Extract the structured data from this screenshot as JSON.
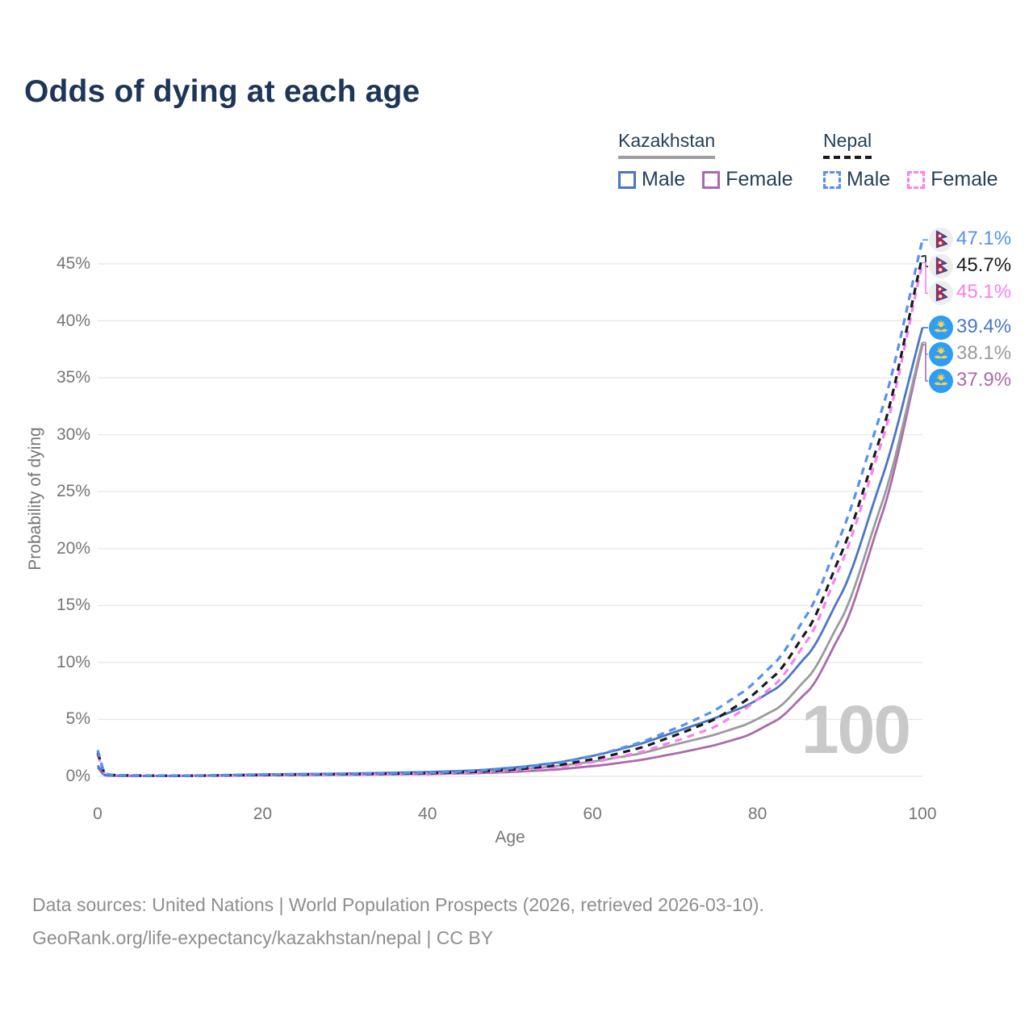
{
  "title": "Odds of dying at each age",
  "watermark": "100",
  "colors": {
    "title": "#1d3557",
    "axis_text": "#767676",
    "grid": "#e8e8e8",
    "watermark": "#c9c9c9",
    "footer": "#8e8e8e",
    "kazakhstan_male": "#4a77c4",
    "kazakhstan_female": "#aa6bac",
    "kazakhstan_both": "#9b9b9b",
    "nepal_male": "#5590f2",
    "nepal_female": "#fb80f1",
    "nepal_both": "#1a1a1a"
  },
  "legend": {
    "groups": [
      {
        "country": "Kazakhstan",
        "line_style": "solid",
        "items": [
          {
            "label": "Male",
            "color": "#4a77c4"
          },
          {
            "label": "Female",
            "color": "#aa6bac"
          }
        ]
      },
      {
        "country": "Nepal",
        "line_style": "dashed",
        "items": [
          {
            "label": "Male",
            "color": "#5590f2"
          },
          {
            "label": "Female",
            "color": "#fb80f1"
          }
        ]
      }
    ]
  },
  "footer": {
    "line1": "Data sources: United Nations | World Population Prospects (2026, retrieved 2026-03-10).",
    "line2": "GeoRank.org/life-expectancy/kazakhstan/nepal | CC BY"
  },
  "chart_data": {
    "type": "line",
    "title": "Odds of dying at each age",
    "xlabel": "Age",
    "ylabel": "Probability of dying",
    "xlim": [
      0,
      100
    ],
    "ylim_pct": [
      0,
      48
    ],
    "grid": true,
    "legend_position": "top-right",
    "x_ticks": [
      {
        "v": 0,
        "label": "0"
      },
      {
        "v": 20,
        "label": "20"
      },
      {
        "v": 40,
        "label": "40"
      },
      {
        "v": 60,
        "label": "60"
      },
      {
        "v": 80,
        "label": "80"
      },
      {
        "v": 100,
        "label": "100"
      }
    ],
    "y_ticks": [
      {
        "v": 0,
        "label": "0%"
      },
      {
        "v": 5,
        "label": "5%"
      },
      {
        "v": 10,
        "label": "10%"
      },
      {
        "v": 15,
        "label": "15%"
      },
      {
        "v": 20,
        "label": "20%"
      },
      {
        "v": 25,
        "label": "25%"
      },
      {
        "v": 30,
        "label": "30%"
      },
      {
        "v": 35,
        "label": "35%"
      },
      {
        "v": 40,
        "label": "40%"
      },
      {
        "v": 45,
        "label": "45%"
      }
    ],
    "ages": [
      0,
      1,
      2,
      5,
      10,
      20,
      30,
      40,
      45,
      50,
      55,
      60,
      65,
      70,
      74,
      78,
      82,
      86,
      90,
      95,
      100
    ],
    "series": [
      {
        "name": "Nepal Male",
        "country": "Nepal",
        "sex": "male",
        "color": "#5590f2",
        "dashed": true,
        "flag": "nepal",
        "end_label": "47.1%",
        "end_value": 47.1,
        "values_pct": [
          2.3,
          0.22,
          0.12,
          0.08,
          0.07,
          0.16,
          0.22,
          0.32,
          0.45,
          0.7,
          1.1,
          1.8,
          2.8,
          4.2,
          5.5,
          7.3,
          9.9,
          14.2,
          21.0,
          32.0,
          47.1
        ]
      },
      {
        "name": "Nepal Both sexes",
        "country": "Nepal",
        "sex": "both",
        "color": "#1a1a1a",
        "dashed": true,
        "flag": "nepal",
        "end_label": "45.7%",
        "end_value": 45.7,
        "values_pct": [
          2.1,
          0.2,
          0.11,
          0.07,
          0.06,
          0.13,
          0.19,
          0.28,
          0.38,
          0.58,
          0.92,
          1.5,
          2.35,
          3.6,
          4.75,
          6.4,
          8.8,
          12.8,
          19.3,
          30.0,
          45.7
        ]
      },
      {
        "name": "Nepal Female",
        "country": "Nepal",
        "sex": "female",
        "color": "#fb80f1",
        "dashed": true,
        "flag": "nepal",
        "end_label": "45.1%",
        "end_value": 45.1,
        "values_pct": [
          1.9,
          0.18,
          0.1,
          0.06,
          0.055,
          0.11,
          0.16,
          0.24,
          0.32,
          0.48,
          0.75,
          1.25,
          2.0,
          3.1,
          4.1,
          5.7,
          8.0,
          11.9,
          18.4,
          29.2,
          45.1
        ]
      },
      {
        "name": "Kazakhstan Male",
        "country": "Kazakhstan",
        "sex": "male",
        "color": "#4a77c4",
        "dashed": false,
        "flag": "kazakhstan",
        "end_label": "39.4%",
        "end_value": 39.4,
        "values_pct": [
          0.95,
          0.1,
          0.06,
          0.045,
          0.05,
          0.17,
          0.25,
          0.38,
          0.5,
          0.75,
          1.15,
          1.8,
          2.7,
          3.9,
          4.9,
          6.0,
          7.6,
          10.6,
          15.8,
          26.0,
          39.4
        ]
      },
      {
        "name": "Kazakhstan Both sexes",
        "country": "Kazakhstan",
        "sex": "both",
        "color": "#9b9b9b",
        "dashed": false,
        "flag": "kazakhstan",
        "end_label": "38.1%",
        "end_value": 38.1,
        "values_pct": [
          0.85,
          0.09,
          0.055,
          0.04,
          0.045,
          0.13,
          0.2,
          0.29,
          0.38,
          0.55,
          0.85,
          1.3,
          1.9,
          2.8,
          3.5,
          4.4,
          5.8,
          8.6,
          13.6,
          23.8,
          38.1
        ]
      },
      {
        "name": "Kazakhstan Female",
        "country": "Kazakhstan",
        "sex": "female",
        "color": "#aa6bac",
        "dashed": false,
        "flag": "kazakhstan",
        "end_label": "37.9%",
        "end_value": 37.9,
        "values_pct": [
          0.75,
          0.08,
          0.05,
          0.035,
          0.04,
          0.09,
          0.14,
          0.2,
          0.27,
          0.38,
          0.58,
          0.9,
          1.35,
          2.0,
          2.6,
          3.4,
          4.8,
          7.4,
          12.4,
          22.8,
          37.9
        ]
      }
    ]
  }
}
